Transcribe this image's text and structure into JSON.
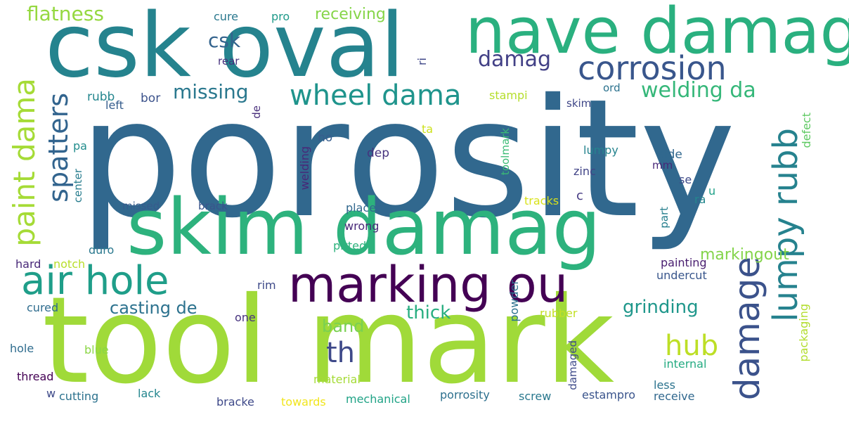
{
  "words": [
    {
      "text": "porosity",
      "color": "#31688e",
      "rot": 0
    },
    {
      "text": "tool mark",
      "color": "#a0da39",
      "rot": 0
    },
    {
      "text": "skim damag",
      "color": "#2db27d",
      "rot": 0
    },
    {
      "text": "csk oval",
      "color": "#25838e",
      "rot": 0
    },
    {
      "text": "nave damag",
      "color": "#2ab07f",
      "rot": 0
    },
    {
      "text": "marking ou",
      "color": "#440154",
      "rot": 0
    },
    {
      "text": "air hole",
      "color": "#1f9e89",
      "rot": 0
    },
    {
      "text": "corrosion",
      "color": "#39568c",
      "rot": 0
    },
    {
      "text": "wheel dama",
      "color": "#1f948c",
      "rot": 0
    },
    {
      "text": "damage",
      "color": "#3b528b",
      "rot": 90
    },
    {
      "text": "lumpy rubb",
      "color": "#26828e",
      "rot": 90
    },
    {
      "text": "paint dama",
      "color": "#a5db36",
      "rot": 90
    },
    {
      "text": "spatters",
      "color": "#32648e",
      "rot": 90
    },
    {
      "text": "welding da",
      "color": "#35b779",
      "rot": 0
    },
    {
      "text": "missing",
      "color": "#2a788e",
      "rot": 0
    },
    {
      "text": "th",
      "color": "#3e4989",
      "rot": 0
    },
    {
      "text": "hub",
      "color": "#bddf26",
      "rot": 0
    },
    {
      "text": "flatness",
      "color": "#95d840",
      "rot": 0
    },
    {
      "text": "damag",
      "color": "#424086",
      "rot": 0
    },
    {
      "text": "csk",
      "color": "#33638d",
      "rot": 0
    },
    {
      "text": "casting de",
      "color": "#2c728e",
      "rot": 0
    },
    {
      "text": "grinding",
      "color": "#1f978b",
      "rot": 0
    },
    {
      "text": "markingout",
      "color": "#84d44b",
      "rot": 0
    },
    {
      "text": "band",
      "color": "#7ad151",
      "rot": 0
    },
    {
      "text": "thick",
      "color": "#28ae80",
      "rot": 0
    },
    {
      "text": "receiving",
      "color": "#86d549",
      "rot": 0
    },
    {
      "text": "cure",
      "color": "#2a788e",
      "rot": 0
    },
    {
      "text": "pro",
      "color": "#1f9a8a",
      "rot": 0
    },
    {
      "text": "rear",
      "color": "#46327e",
      "rot": 0
    },
    {
      "text": "ri",
      "color": "#3f4788",
      "rot": 90
    },
    {
      "text": "rubb",
      "color": "#24868e",
      "rot": 0
    },
    {
      "text": "left",
      "color": "#365d8d",
      "rot": 0
    },
    {
      "text": "bor",
      "color": "#3b528b",
      "rot": 0
    },
    {
      "text": "stampi",
      "color": "#b5de2b",
      "rot": 0
    },
    {
      "text": "ord",
      "color": "#2c728e",
      "rot": 0
    },
    {
      "text": "skim",
      "color": "#3f4788",
      "rot": 0
    },
    {
      "text": "de",
      "color": "#472d7b",
      "rot": 90
    },
    {
      "text": "ta",
      "color": "#cde11d",
      "rot": 0
    },
    {
      "text": "ho",
      "color": "#365d8d",
      "rot": 0
    },
    {
      "text": "toolmark",
      "color": "#3bbb75",
      "rot": 90
    },
    {
      "text": "defect",
      "color": "#5ec962",
      "rot": 90
    },
    {
      "text": "pa",
      "color": "#228d8d",
      "rot": 0
    },
    {
      "text": "dep",
      "color": "#46327e",
      "rot": 0
    },
    {
      "text": "welding",
      "color": "#482878",
      "rot": 90
    },
    {
      "text": "lumpy",
      "color": "#25838e",
      "rot": 0
    },
    {
      "text": "side",
      "color": "#31688e",
      "rot": 0
    },
    {
      "text": "mm",
      "color": "#482878",
      "rot": 0
    },
    {
      "text": "zinc",
      "color": "#414487",
      "rot": 0
    },
    {
      "text": "center",
      "color": "#287d8e",
      "rot": 90
    },
    {
      "text": "se",
      "color": "#3e4a89",
      "rot": 0
    },
    {
      "text": "u",
      "color": "#1fa188",
      "rot": 0
    },
    {
      "text": "ra",
      "color": "#24878e",
      "rot": 0
    },
    {
      "text": "missed",
      "color": "#375b8d",
      "rot": 0
    },
    {
      "text": "brack",
      "color": "#3a548c",
      "rot": 0
    },
    {
      "text": "placed",
      "color": "#31688e",
      "rot": 0
    },
    {
      "text": "tracks",
      "color": "#d8e219",
      "rot": 0
    },
    {
      "text": "c",
      "color": "#443983",
      "rot": 0
    },
    {
      "text": "part",
      "color": "#277f8e",
      "rot": 90
    },
    {
      "text": "wrong",
      "color": "#482878",
      "rot": 0
    },
    {
      "text": "duro",
      "color": "#2a788e",
      "rot": 0
    },
    {
      "text": "pitted",
      "color": "#2db27d",
      "rot": 0
    },
    {
      "text": "hard",
      "color": "#482878",
      "rot": 0
    },
    {
      "text": "notch",
      "color": "#b8de29",
      "rot": 0
    },
    {
      "text": "painting",
      "color": "#481d6f",
      "rot": 0
    },
    {
      "text": "undercut",
      "color": "#39568c",
      "rot": 0
    },
    {
      "text": "rim",
      "color": "#3e4a89",
      "rot": 0
    },
    {
      "text": "powder",
      "color": "#2c728e",
      "rot": 90
    },
    {
      "text": "cured",
      "color": "#2f6c8e",
      "rot": 0
    },
    {
      "text": "one",
      "color": "#46327e",
      "rot": 0
    },
    {
      "text": "rubber",
      "color": "#c2df23",
      "rot": 0
    },
    {
      "text": "packaging",
      "color": "#b2dd2d",
      "rot": 90
    },
    {
      "text": "hole",
      "color": "#2f6c8e",
      "rot": 0
    },
    {
      "text": "blue",
      "color": "#8bd646",
      "rot": 0
    },
    {
      "text": "internal",
      "color": "#25ab82",
      "rot": 0
    },
    {
      "text": "damaged",
      "color": "#3e4a89",
      "rot": 90
    },
    {
      "text": "thread",
      "color": "#440154",
      "rot": 0
    },
    {
      "text": "material",
      "color": "#a5db36",
      "rot": 0
    },
    {
      "text": "w",
      "color": "#3e4a89",
      "rot": 0
    },
    {
      "text": "cutting",
      "color": "#2c728e",
      "rot": 0
    },
    {
      "text": "lack",
      "color": "#24868e",
      "rot": 0
    },
    {
      "text": "less",
      "color": "#2c738e",
      "rot": 0
    },
    {
      "text": "bracke",
      "color": "#3e4989",
      "rot": 0
    },
    {
      "text": "towards",
      "color": "#f1e51d",
      "rot": 0
    },
    {
      "text": "mechanical",
      "color": "#20a386",
      "rot": 0
    },
    {
      "text": "porrosity",
      "color": "#2d708e",
      "rot": 0
    },
    {
      "text": "screw",
      "color": "#2a788e",
      "rot": 0
    },
    {
      "text": "estampro",
      "color": "#3a548c",
      "rot": 0
    },
    {
      "text": "receive",
      "color": "#31688e",
      "rot": 0
    }
  ]
}
